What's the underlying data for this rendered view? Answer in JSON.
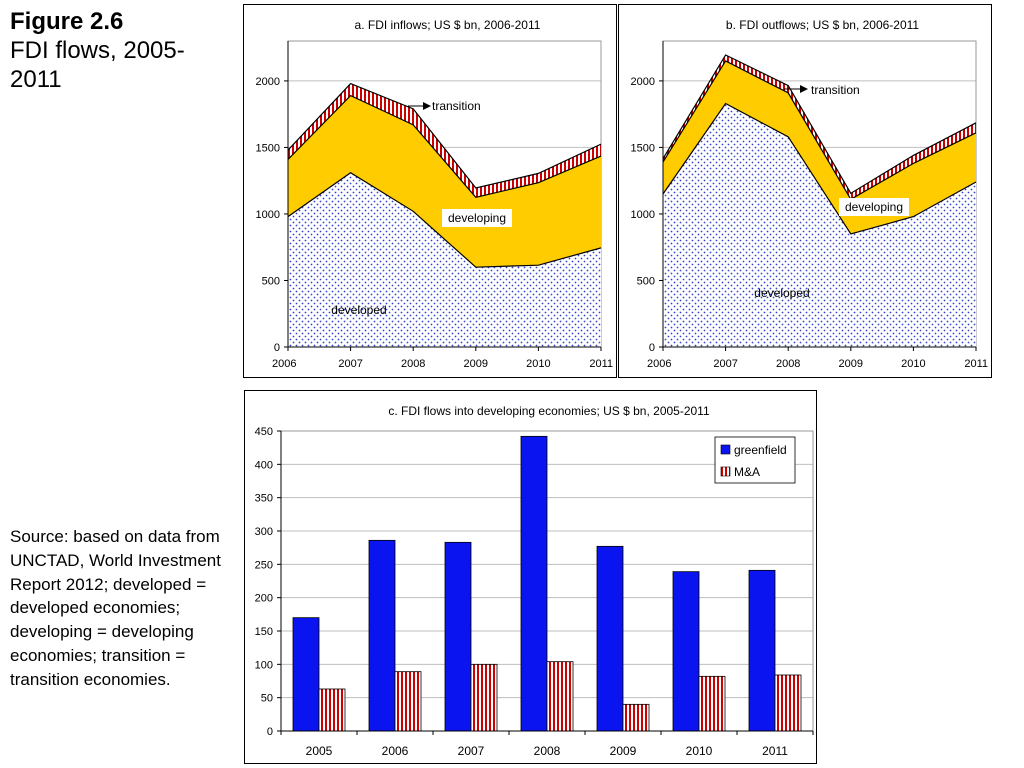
{
  "figure": {
    "number": "Figure 2.6",
    "title": "FDI flows, 2005-2011"
  },
  "source_note": "Source: based on data from UNCTAD, World Investment Report 2012; developed = developed economies; developing = developing economies; transition = transition economies.",
  "colors": {
    "developed": "#3344cc",
    "developing": "#ffcc00",
    "transition": "#cc0000",
    "greenfield": "#0a14f0",
    "mna": "#dd1111"
  },
  "chart_data": [
    {
      "type": "area",
      "stacked": true,
      "title": "a. FDI inflows; US $ bn, 2006-2011",
      "x": [
        "2006",
        "2007",
        "2008",
        "2009",
        "2010",
        "2011"
      ],
      "ylim": [
        0,
        2300
      ],
      "yticks": [
        0,
        500,
        1000,
        1500,
        2000
      ],
      "series": [
        {
          "name": "developed",
          "values": [
            980,
            1310,
            1020,
            600,
            615,
            745
          ]
        },
        {
          "name": "developing",
          "values": [
            430,
            580,
            650,
            525,
            620,
            690
          ]
        },
        {
          "name": "transition",
          "values": [
            70,
            90,
            120,
            70,
            70,
            90
          ]
        }
      ],
      "annotations": {
        "developed": "developed",
        "developing": "developing",
        "transition": "transition"
      },
      "grid": true
    },
    {
      "type": "area",
      "stacked": true,
      "title": "b. FDI outflows; US $ bn, 2006-2011",
      "x": [
        "2006",
        "2007",
        "2008",
        "2009",
        "2010",
        "2011"
      ],
      "ylim": [
        0,
        2300
      ],
      "yticks": [
        0,
        500,
        1000,
        1500,
        2000
      ],
      "series": [
        {
          "name": "developed",
          "values": [
            1150,
            1830,
            1580,
            850,
            980,
            1240
          ]
        },
        {
          "name": "developing",
          "values": [
            240,
            320,
            330,
            260,
            400,
            370
          ]
        },
        {
          "name": "transition",
          "values": [
            25,
            45,
            55,
            45,
            60,
            75
          ]
        }
      ],
      "annotations": {
        "developed": "developed",
        "developing": "developing",
        "transition": "transition"
      },
      "grid": true
    },
    {
      "type": "bar",
      "title": "c. FDI flows into developing economies; US $ bn, 2005-2011",
      "categories": [
        "2005",
        "2006",
        "2007",
        "2008",
        "2009",
        "2010",
        "2011"
      ],
      "ylim": [
        0,
        450
      ],
      "yticks": [
        0,
        50,
        100,
        150,
        200,
        250,
        300,
        350,
        400,
        450
      ],
      "series": [
        {
          "name": "greenfield",
          "values": [
            170,
            286,
            283,
            442,
            277,
            239,
            241
          ]
        },
        {
          "name": "M&A",
          "values": [
            63,
            89,
            100,
            104,
            40,
            82,
            84
          ]
        }
      ],
      "legend": "top-right",
      "grid": true
    }
  ]
}
